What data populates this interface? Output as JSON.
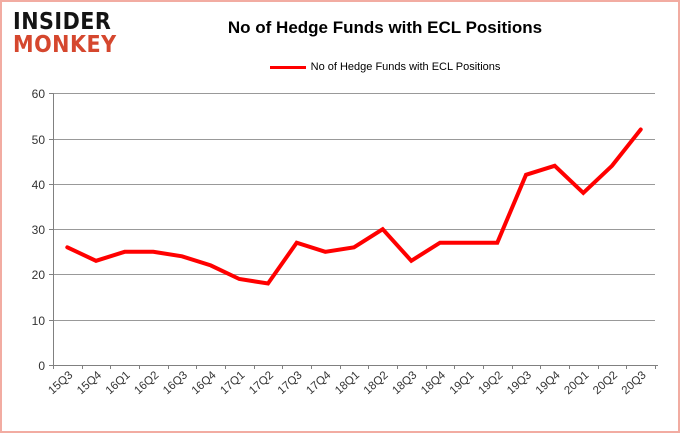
{
  "header": {
    "logo_line1": "INSIDER",
    "logo_line2": "MONKEY",
    "title": "No of Hedge Funds with ECL Positions"
  },
  "legend": {
    "label": "No of Hedge Funds with ECL Positions"
  },
  "colors": {
    "line": "#ff0000",
    "logo_black": "#141414",
    "logo_red": "#d5472e",
    "grid": "#999999",
    "axis": "#808080",
    "tick_label": "#333333",
    "border": "#f2aca2"
  },
  "chart_data": {
    "type": "line",
    "title": "No of Hedge Funds with ECL Positions",
    "categories": [
      "15Q3",
      "15Q4",
      "16Q1",
      "16Q2",
      "16Q3",
      "16Q4",
      "17Q1",
      "17Q2",
      "17Q3",
      "17Q4",
      "18Q1",
      "18Q2",
      "18Q3",
      "18Q4",
      "19Q1",
      "19Q2",
      "19Q3",
      "19Q4",
      "20Q1",
      "20Q2",
      "20Q3"
    ],
    "series": [
      {
        "name": "No of Hedge Funds with ECL Positions",
        "color": "#ff0000",
        "values": [
          26,
          23,
          25,
          25,
          24,
          22,
          19,
          18,
          27,
          25,
          26,
          30,
          23,
          27,
          27,
          27,
          42,
          44,
          38,
          44,
          52
        ]
      }
    ],
    "xlabel": "",
    "ylabel": "",
    "ylim": [
      0,
      60
    ],
    "yticks": [
      0,
      10,
      20,
      30,
      40,
      50,
      60
    ],
    "grid": true,
    "legend_position": "top"
  }
}
